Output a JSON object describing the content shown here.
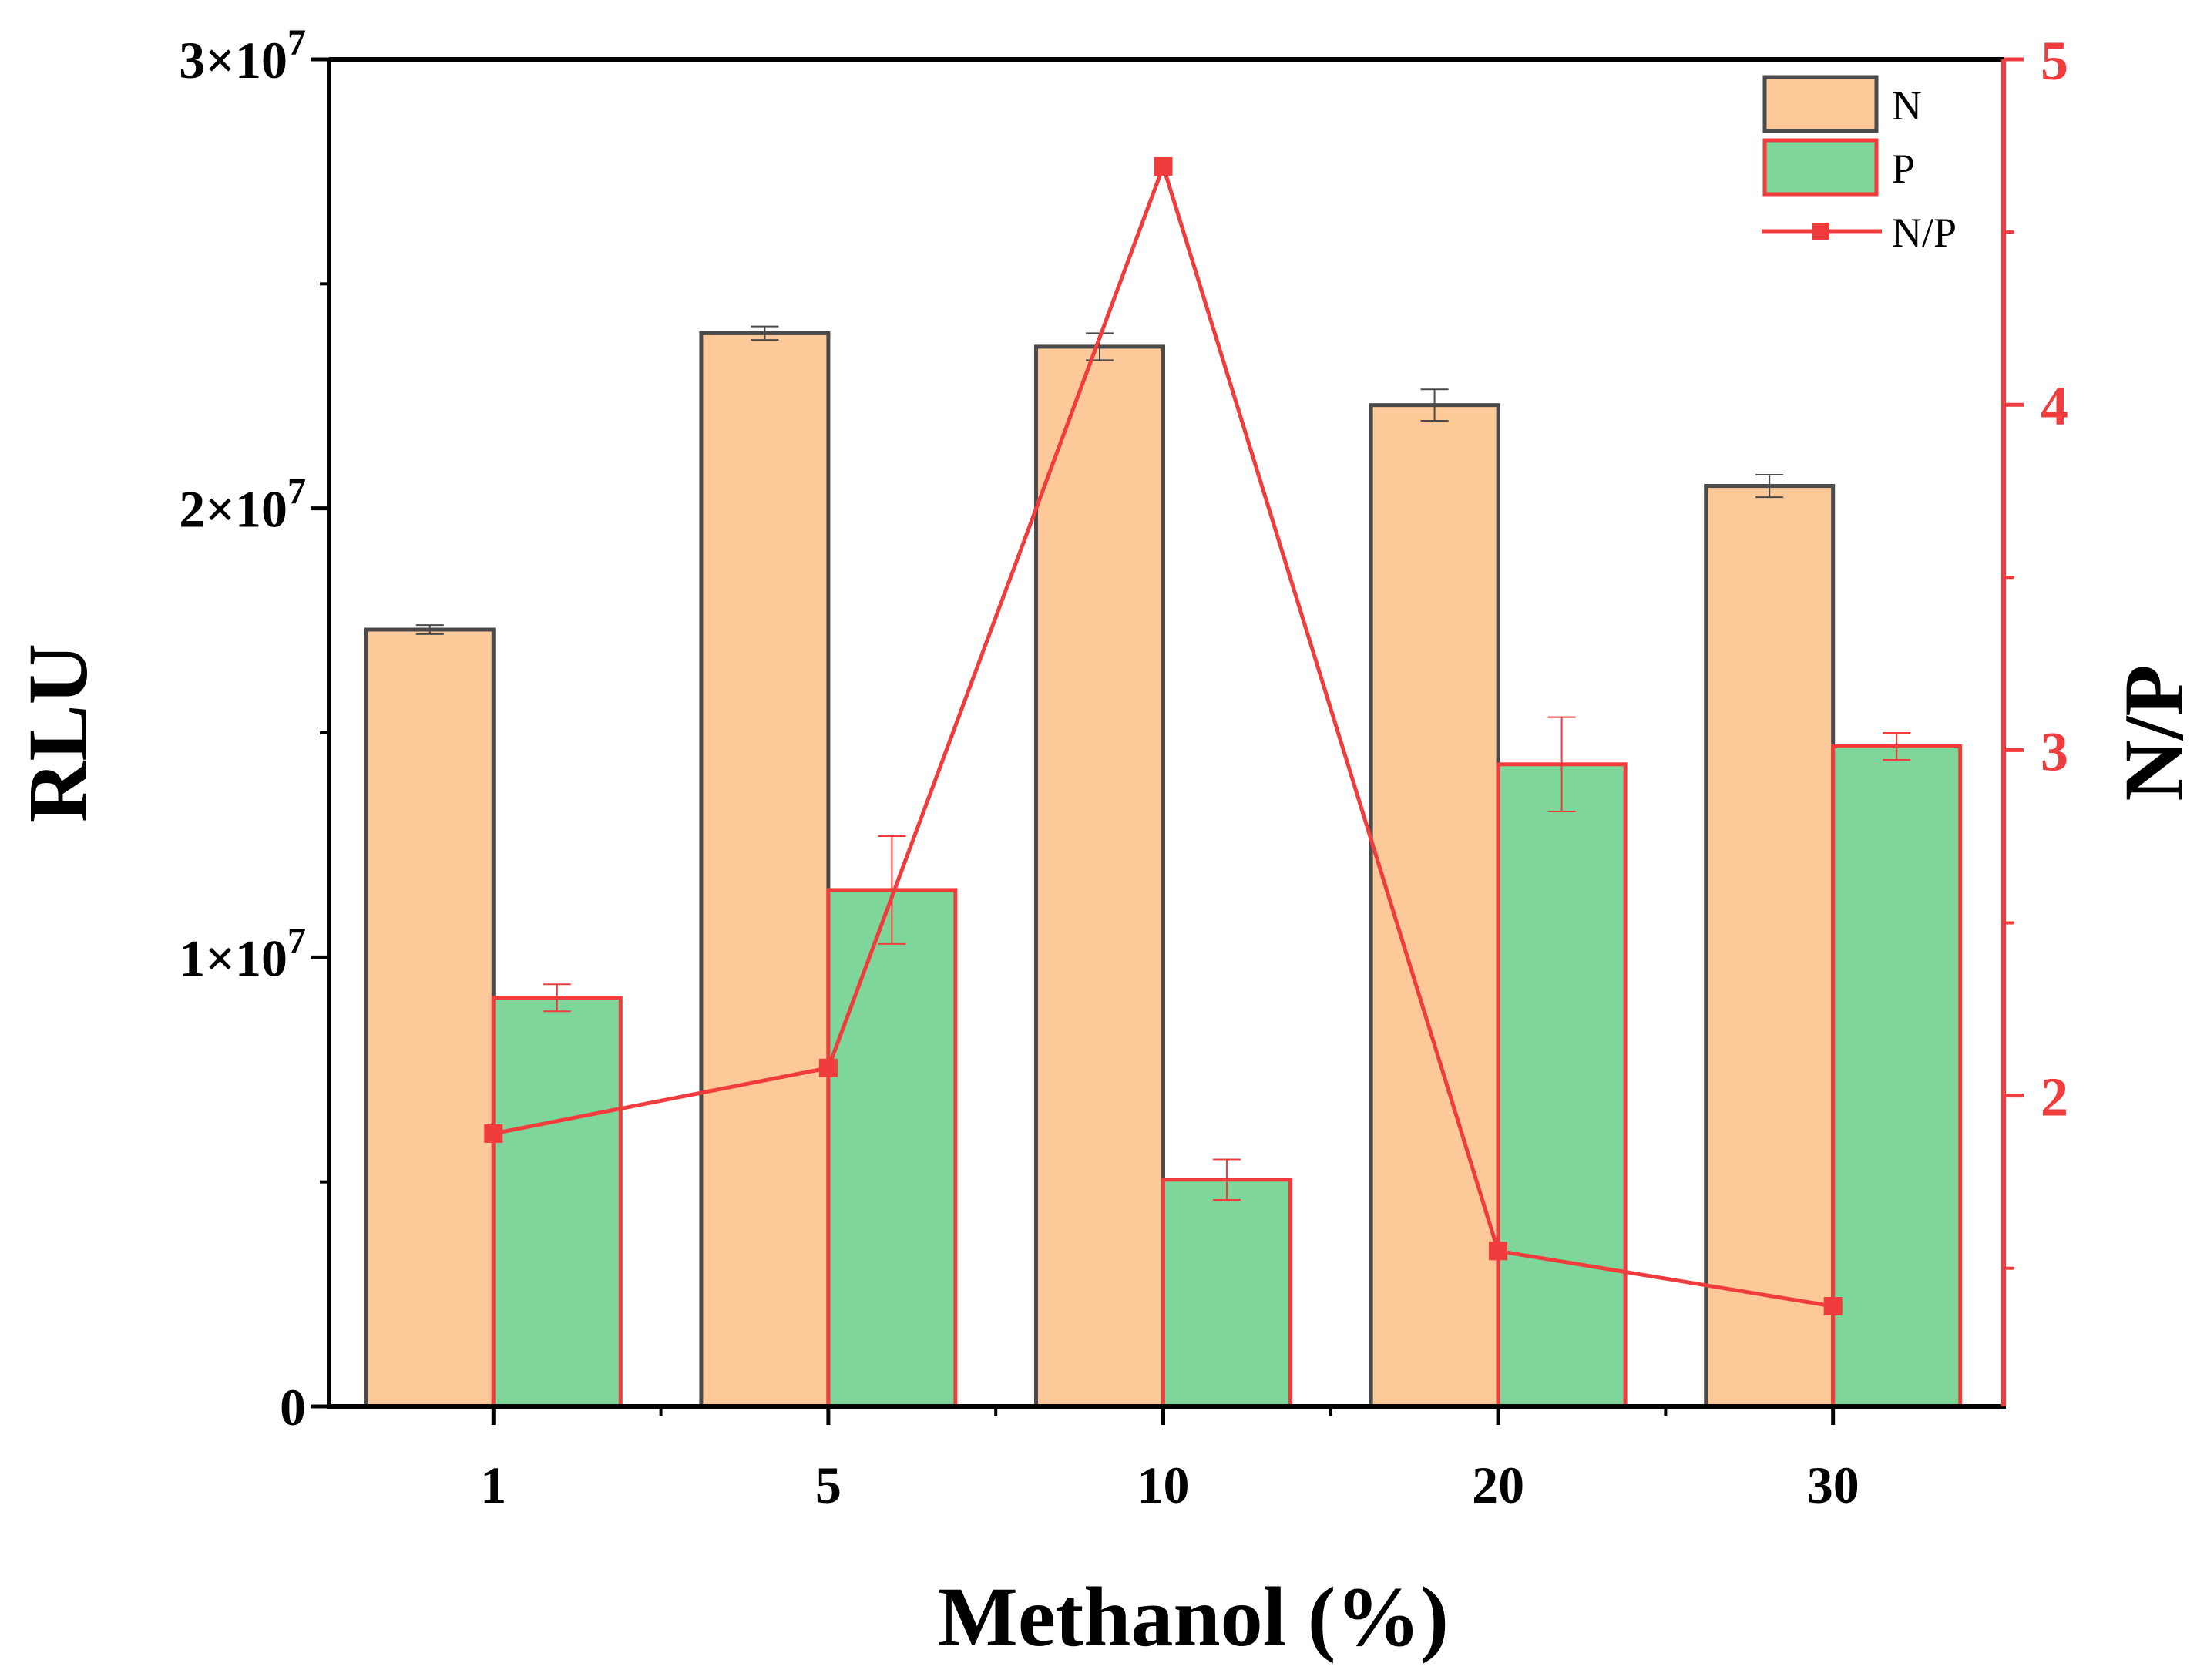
{
  "chart_data": {
    "type": "bar",
    "categories": [
      "1",
      "5",
      "10",
      "20",
      "30"
    ],
    "xlabel": "Methanol (%)",
    "ylabel": "RLU",
    "y2label": "N/P",
    "ylim": [
      0,
      30000000
    ],
    "y2lim": [
      1.1,
      5
    ],
    "y_ticks": [
      {
        "value": 0,
        "mant": "0",
        "exp": ""
      },
      {
        "value": 10000000,
        "mant": "1×10",
        "exp": "7"
      },
      {
        "value": 20000000,
        "mant": "2×10",
        "exp": "7"
      },
      {
        "value": 30000000,
        "mant": "3×10",
        "exp": "7"
      }
    ],
    "y2_ticks_major": [
      "2",
      "3",
      "4",
      "5"
    ],
    "y2_ticks_minor": [
      1.5,
      2.5,
      3.5,
      4.5
    ],
    "series": [
      {
        "name": "N",
        "kind": "bar",
        "fill": "#FDC998",
        "stroke": "#4A4A4A",
        "values": [
          17300000,
          23900000,
          23600000,
          22300000,
          20500000
        ],
        "errors": [
          100000,
          150000,
          300000,
          350000,
          250000
        ]
      },
      {
        "name": "P",
        "kind": "bar",
        "fill": "#7ED69A",
        "stroke": "#F03C3C",
        "values": [
          9100000,
          11500000,
          5050000,
          14300000,
          14700000
        ],
        "errors": [
          300000,
          1200000,
          450000,
          1050000,
          300000
        ]
      },
      {
        "name": "N/P",
        "kind": "line",
        "axis": "right",
        "color": "#F03C3C",
        "values": [
          1.89,
          2.08,
          4.69,
          1.55,
          1.39
        ]
      }
    ],
    "legend": [
      "N",
      "P",
      "N/P"
    ],
    "legend_position": "top-right",
    "colors": {
      "right_axis": "#F03C3C",
      "axis": "#000000"
    }
  }
}
